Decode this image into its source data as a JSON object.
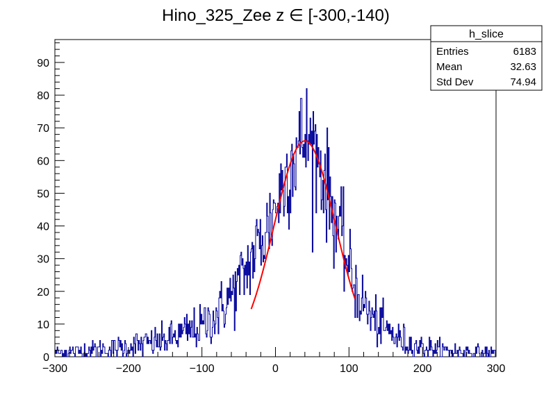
{
  "chart_data": {
    "type": "histogram",
    "title": "Hino_325_Zee z  ∈ [-300,-140)",
    "xlabel": "",
    "ylabel": "",
    "xlim": [
      -300,
      300
    ],
    "ylim": [
      0,
      97
    ],
    "x_ticks": [
      -300,
      -200,
      -100,
      0,
      100,
      200,
      300
    ],
    "x_tick_labels": [
      "−300",
      "−200",
      "−100",
      "0",
      "100",
      "200",
      "300"
    ],
    "y_ticks": [
      0,
      10,
      20,
      30,
      40,
      50,
      60,
      70,
      80,
      90
    ],
    "y_tick_labels": [
      "0",
      "10",
      "20",
      "30",
      "40",
      "50",
      "60",
      "70",
      "80",
      "90"
    ],
    "grid": false,
    "bins": 600,
    "histogram_color": "#000099",
    "fit": {
      "function": "gaussian",
      "color": "#ff0000",
      "amplitude": 66,
      "mean": 40,
      "sigma": 42,
      "range": [
        -33,
        108
      ]
    },
    "envelope_points": [
      [
        -300,
        1
      ],
      [
        -250,
        2
      ],
      [
        -200,
        3
      ],
      [
        -150,
        5
      ],
      [
        -100,
        9
      ],
      [
        -75,
        14
      ],
      [
        -50,
        22
      ],
      [
        -30,
        31
      ],
      [
        -10,
        40
      ],
      [
        10,
        52
      ],
      [
        25,
        62
      ],
      [
        40,
        67
      ],
      [
        55,
        63
      ],
      [
        70,
        52
      ],
      [
        85,
        40
      ],
      [
        100,
        27
      ],
      [
        115,
        18
      ],
      [
        130,
        12
      ],
      [
        150,
        8
      ],
      [
        180,
        4
      ],
      [
        220,
        2
      ],
      [
        300,
        1
      ]
    ],
    "legend": {
      "placement": "top-right",
      "title": "h_slice",
      "entries": [
        {
          "label": "Entries",
          "value": "6183"
        },
        {
          "label": "Mean",
          "value": "32.63"
        },
        {
          "label": "Std Dev",
          "value": "74.94"
        }
      ]
    }
  }
}
